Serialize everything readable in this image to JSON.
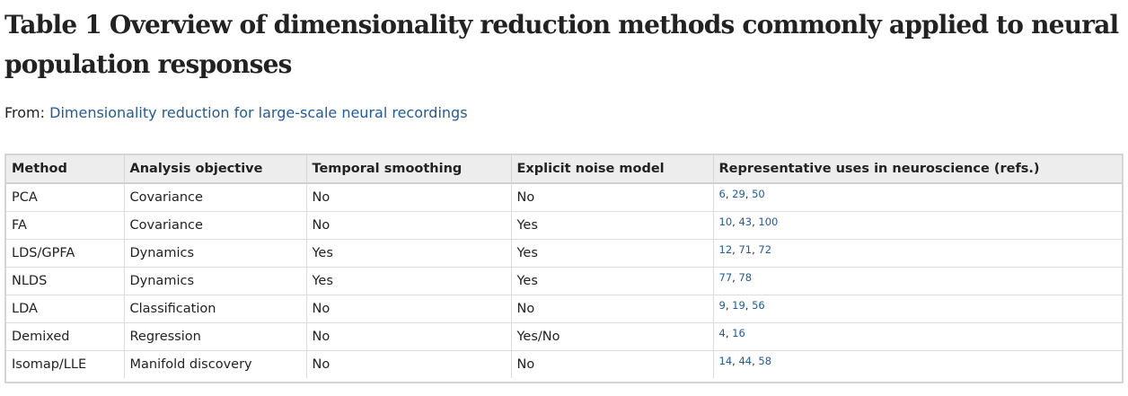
{
  "title": "Table 1 Overview of dimensionality reduction methods commonly applied to neural population responses",
  "from": {
    "label": "From:",
    "link_text": "Dimensionality reduction for large-scale neural recordings"
  },
  "colors": {
    "text": "#222222",
    "link": "#215b9b",
    "header_bg": "#ededed",
    "border": "#d5d5d5"
  },
  "table": {
    "headers": [
      "Method",
      "Analysis objective",
      "Temporal smoothing",
      "Explicit noise model",
      "Representative uses in neuroscience (refs.)"
    ],
    "rows": [
      {
        "method": "PCA",
        "objective": "Covariance",
        "smoothing": "No",
        "noise": "No",
        "refs": [
          "6",
          "29",
          "50"
        ]
      },
      {
        "method": "FA",
        "objective": "Covariance",
        "smoothing": "No",
        "noise": "Yes",
        "refs": [
          "10",
          "43",
          "100"
        ]
      },
      {
        "method": "LDS/GPFA",
        "objective": "Dynamics",
        "smoothing": "Yes",
        "noise": "Yes",
        "refs": [
          "12",
          "71",
          "72"
        ]
      },
      {
        "method": "NLDS",
        "objective": "Dynamics",
        "smoothing": "Yes",
        "noise": "Yes",
        "refs": [
          "77",
          "78"
        ]
      },
      {
        "method": "LDA",
        "objective": "Classification",
        "smoothing": "No",
        "noise": "No",
        "refs": [
          "9",
          "19",
          "56"
        ]
      },
      {
        "method": "Demixed",
        "objective": "Regression",
        "smoothing": "No",
        "noise": "Yes/No",
        "refs": [
          "4",
          "16"
        ]
      },
      {
        "method": "Isomap/LLE",
        "objective": "Manifold discovery",
        "smoothing": "No",
        "noise": "No",
        "refs": [
          "14",
          "44",
          "58"
        ]
      }
    ]
  }
}
